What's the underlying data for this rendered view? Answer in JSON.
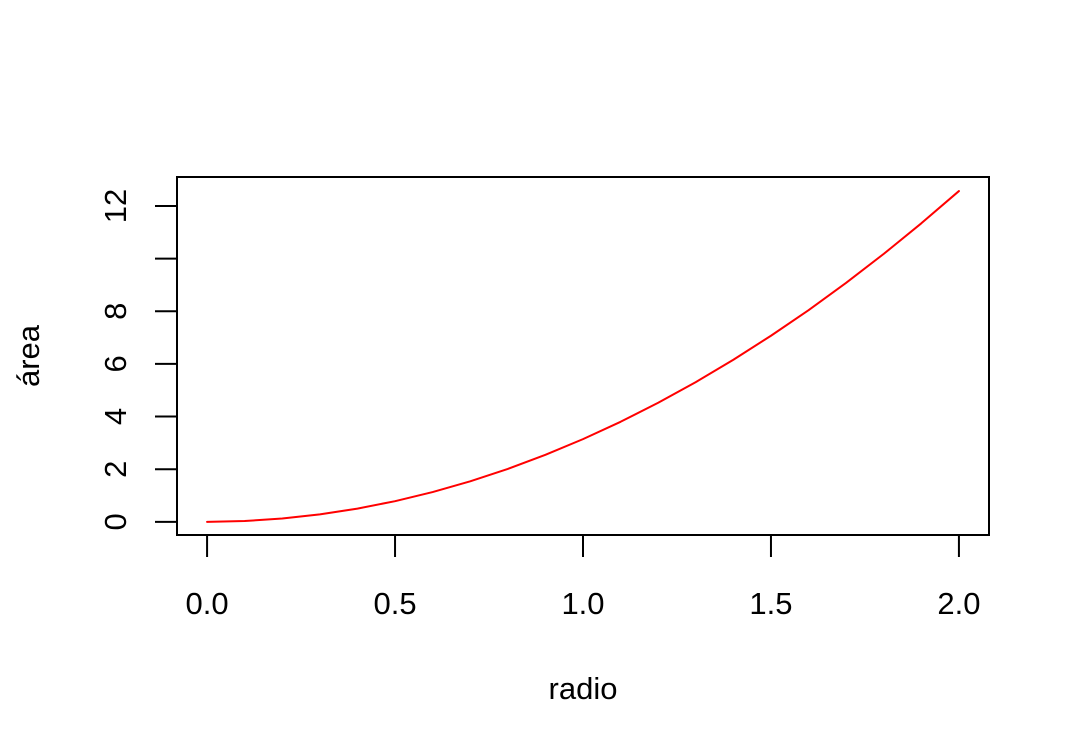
{
  "chart_data": {
    "type": "line",
    "title": "",
    "xlabel": "radio",
    "ylabel": "área",
    "xlim": [
      -0.08,
      2.08
    ],
    "ylim": [
      -0.5,
      13.1
    ],
    "x_ticks": [
      0,
      0.5,
      1,
      1.5,
      2
    ],
    "x_tick_labels": [
      "0.0",
      "0.5",
      "1.0",
      "1.5",
      "2.0"
    ],
    "y_ticks": [
      0,
      2,
      4,
      6,
      8,
      10,
      12
    ],
    "y_tick_labels": [
      "0",
      "2",
      "4",
      "6",
      "8",
      "",
      "12"
    ],
    "grid": false,
    "series": [
      {
        "color": "#ff0000",
        "x": [
          0,
          0.1,
          0.2,
          0.3,
          0.4,
          0.5,
          0.6,
          0.7,
          0.8,
          0.9,
          1.0,
          1.1,
          1.2,
          1.3,
          1.4,
          1.5,
          1.6,
          1.7,
          1.8,
          1.9,
          2.0
        ],
        "y": [
          0,
          0.031,
          0.126,
          0.283,
          0.503,
          0.785,
          1.131,
          1.539,
          2.011,
          2.545,
          3.142,
          3.801,
          4.524,
          5.309,
          6.158,
          7.069,
          8.042,
          9.079,
          10.179,
          11.341,
          12.566
        ]
      }
    ]
  }
}
